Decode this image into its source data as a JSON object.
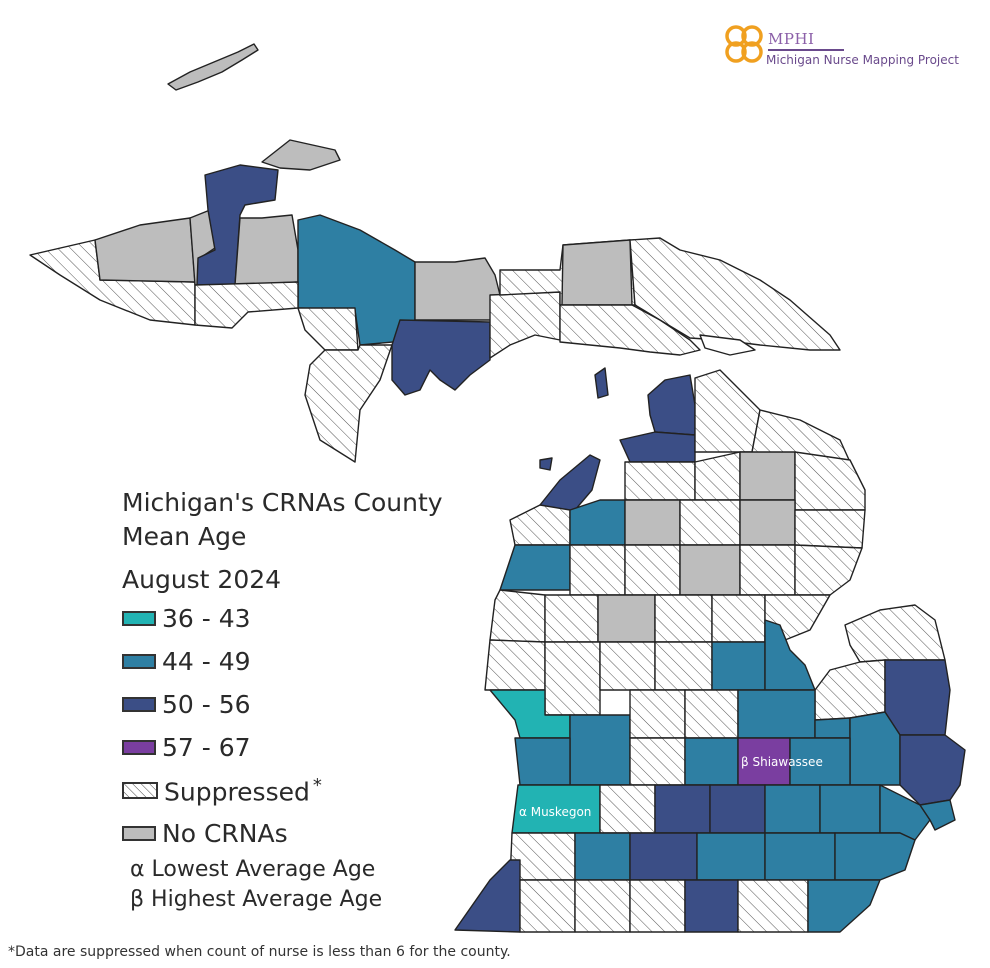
{
  "logo": {
    "name": "MPHI",
    "subtitle": "Michigan Nurse Mapping Project"
  },
  "legend": {
    "title": "Michigan's CRNAs County Mean Age",
    "date": "August 2024",
    "items": [
      {
        "label": "36 - 43",
        "color": "#22b3b3"
      },
      {
        "label": "44 - 49",
        "color": "#2e7fa3"
      },
      {
        "label": "50 - 56",
        "color": "#3b4e86"
      },
      {
        "label": "57 - 67",
        "color": "#7a3ea0"
      },
      {
        "label": "Suppressed",
        "marker": "*",
        "pattern": "diagonal-hatch"
      },
      {
        "label": "No CRNAs",
        "color": "#bdbdbd"
      }
    ],
    "notes": [
      {
        "symbol": "α",
        "label": "Lowest Average Age"
      },
      {
        "symbol": "β",
        "label": "Highest Average Age"
      }
    ]
  },
  "map_labels": {
    "lowest": "α Muskegon",
    "highest": "β Shiawassee"
  },
  "footnote": "*Data are suppressed when count of nurse is less than 6 for the county."
}
